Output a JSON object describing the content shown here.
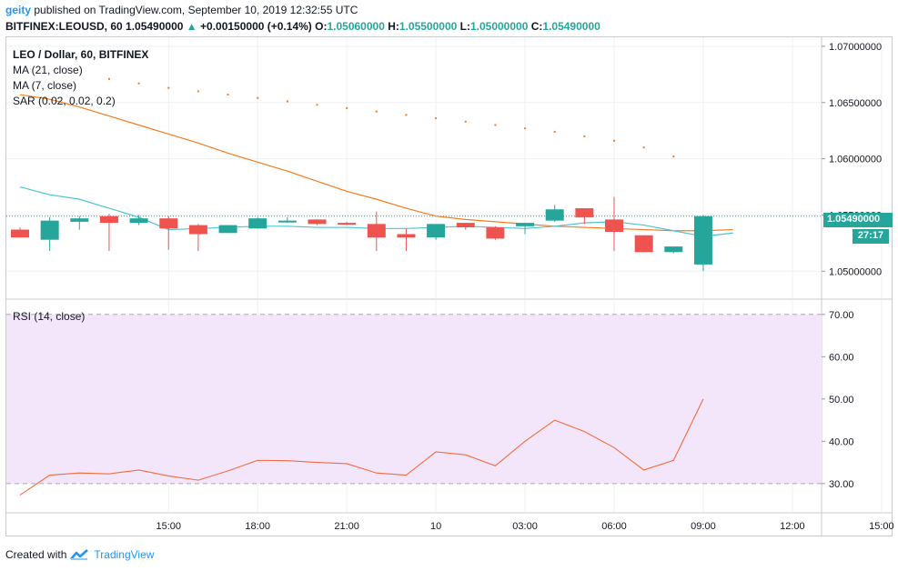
{
  "header": {
    "user": "geity",
    "published": "published on TradingView.com, September 10, 2019 12:32:55 UTC",
    "symbol": "BITFINEX:LEOUSD, 60",
    "last": "1.05490000",
    "change": "+0.00150000 (+0.14%)",
    "o_label": "O:",
    "o_value": "1.05060000",
    "h_label": "H:",
    "h_value": "1.05500000",
    "l_label": "L:",
    "l_value": "1.05000000",
    "c_label": "C:",
    "c_value": "1.05490000"
  },
  "legend": {
    "title": "LEO / Dollar, 60, BITFINEX",
    "ma21": "MA (21, close)",
    "ma7": "MA (7, close)",
    "sar": "SAR (0.02, 0.02, 0.2)",
    "rsi": "RSI (14, close)"
  },
  "price_labels": {
    "last": "1.05490000",
    "countdown": "27:17"
  },
  "footer": {
    "created": "Created with",
    "brand": "TradingView"
  },
  "colors": {
    "up": "#26a69a",
    "down": "#ef5350",
    "ma21": "#f57c1f",
    "ma7": "#4fc3d2",
    "sar": "#f57c1f",
    "rsi": "#f26c3d",
    "rsi_band": "#f3e6fb"
  },
  "chart_data": [
    {
      "type": "candlestick",
      "title": "LEO / Dollar, 60, BITFINEX",
      "y_ticks": [
        "1.05000000",
        "1.05500000",
        "1.06000000",
        "1.06500000",
        "1.07000000"
      ],
      "ylim": [
        1.0476,
        1.0708
      ],
      "x_ticks": [
        "15:00",
        "18:00",
        "21:00",
        "10",
        "03:00",
        "06:00",
        "09:00",
        "12:00",
        "15:00"
      ],
      "candles": [
        {
          "t": 1,
          "o": 1.0537,
          "h": 1.0539,
          "l": 1.053,
          "c": 1.053
        },
        {
          "t": 2,
          "o": 1.0528,
          "h": 1.0548,
          "l": 1.0518,
          "c": 1.0545
        },
        {
          "t": 3,
          "o": 1.0544,
          "h": 1.0549,
          "l": 1.0537,
          "c": 1.0547
        },
        {
          "t": 4,
          "o": 1.0549,
          "h": 1.0551,
          "l": 1.0518,
          "c": 1.0543
        },
        {
          "t": 5,
          "o": 1.0543,
          "h": 1.055,
          "l": 1.0541,
          "c": 1.0547
        },
        {
          "t": 6,
          "o": 1.0547,
          "h": 1.0549,
          "l": 1.0519,
          "c": 1.0538
        },
        {
          "t": 7,
          "o": 1.0541,
          "h": 1.0542,
          "l": 1.0518,
          "c": 1.0533
        },
        {
          "t": 8,
          "o": 1.0534,
          "h": 1.0541,
          "l": 1.0534,
          "c": 1.0541
        },
        {
          "t": 9,
          "o": 1.0538,
          "h": 1.0548,
          "l": 1.0538,
          "c": 1.0547
        },
        {
          "t": 10,
          "o": 1.0545,
          "h": 1.0548,
          "l": 1.0543,
          "c": 1.0545
        },
        {
          "t": 11,
          "o": 1.0546,
          "h": 1.0546,
          "l": 1.0541,
          "c": 1.0542
        },
        {
          "t": 12,
          "o": 1.0543,
          "h": 1.0544,
          "l": 1.0541,
          "c": 1.0542
        },
        {
          "t": 13,
          "o": 1.0542,
          "h": 1.0553,
          "l": 1.0518,
          "c": 1.053
        },
        {
          "t": 14,
          "o": 1.0533,
          "h": 1.0538,
          "l": 1.0518,
          "c": 1.053
        },
        {
          "t": 15,
          "o": 1.053,
          "h": 1.0542,
          "l": 1.0528,
          "c": 1.0542
        },
        {
          "t": 16,
          "o": 1.0543,
          "h": 1.0543,
          "l": 1.0537,
          "c": 1.0539
        },
        {
          "t": 17,
          "o": 1.0539,
          "h": 1.054,
          "l": 1.0528,
          "c": 1.0529
        },
        {
          "t": 18,
          "o": 1.054,
          "h": 1.0541,
          "l": 1.0533,
          "c": 1.0543
        },
        {
          "t": 19,
          "o": 1.0545,
          "h": 1.0559,
          "l": 1.0544,
          "c": 1.0555
        },
        {
          "t": 20,
          "o": 1.0556,
          "h": 1.0556,
          "l": 1.0542,
          "c": 1.0548
        },
        {
          "t": 21,
          "o": 1.0546,
          "h": 1.0566,
          "l": 1.0518,
          "c": 1.0535
        },
        {
          "t": 22,
          "o": 1.0532,
          "h": 1.0532,
          "l": 1.0517,
          "c": 1.0517
        },
        {
          "t": 23,
          "o": 1.0517,
          "h": 1.0522,
          "l": 1.0516,
          "c": 1.0522
        },
        {
          "t": 24,
          "o": 1.0506,
          "h": 1.055,
          "l": 1.05,
          "c": 1.0549
        }
      ],
      "ma21": [
        [
          0,
          1.0657
        ],
        [
          1,
          1.0653
        ],
        [
          2,
          1.0646
        ],
        [
          3,
          1.0638
        ],
        [
          4,
          1.063
        ],
        [
          5,
          1.0622
        ],
        [
          6,
          1.0614
        ],
        [
          7,
          1.0605
        ],
        [
          8,
          1.0597
        ],
        [
          9,
          1.0589
        ],
        [
          10,
          1.058
        ],
        [
          11,
          1.0571
        ],
        [
          12,
          1.0564
        ],
        [
          13,
          1.0556
        ],
        [
          14,
          1.0549
        ],
        [
          15,
          1.0546
        ],
        [
          16,
          1.0544
        ],
        [
          17,
          1.0542
        ],
        [
          18,
          1.054
        ],
        [
          19,
          1.0539
        ],
        [
          20,
          1.0538
        ],
        [
          21,
          1.0537
        ],
        [
          22,
          1.0536
        ],
        [
          23,
          1.0536
        ],
        [
          24,
          1.0537
        ]
      ],
      "ma7": [
        [
          0,
          1.0575
        ],
        [
          1,
          1.0568
        ],
        [
          2,
          1.0564
        ],
        [
          3,
          1.0556
        ],
        [
          4,
          1.0548
        ],
        [
          5,
          1.0537
        ],
        [
          6,
          1.0538
        ],
        [
          7,
          1.0539
        ],
        [
          8,
          1.054
        ],
        [
          9,
          1.054
        ],
        [
          10,
          1.0539
        ],
        [
          11,
          1.0539
        ],
        [
          12,
          1.0538
        ],
        [
          13,
          1.0538
        ],
        [
          14,
          1.0539
        ],
        [
          15,
          1.054
        ],
        [
          16,
          1.0539
        ],
        [
          17,
          1.0538
        ],
        [
          18,
          1.054
        ],
        [
          19,
          1.0543
        ],
        [
          20,
          1.0544
        ],
        [
          21,
          1.0541
        ],
        [
          22,
          1.0536
        ],
        [
          23,
          1.0531
        ],
        [
          24,
          1.0534
        ]
      ],
      "sar": [
        [
          3,
          1.0671
        ],
        [
          4,
          1.0667
        ],
        [
          5,
          1.0663
        ],
        [
          6,
          1.066
        ],
        [
          7,
          1.0657
        ],
        [
          8,
          1.0654
        ],
        [
          9,
          1.0651
        ],
        [
          10,
          1.0648
        ],
        [
          11,
          1.0645
        ],
        [
          12,
          1.0642
        ],
        [
          13,
          1.0639
        ],
        [
          14,
          1.0636
        ],
        [
          15,
          1.0633
        ],
        [
          16,
          1.063
        ],
        [
          17,
          1.0627
        ],
        [
          18,
          1.0624
        ],
        [
          19,
          1.062
        ],
        [
          20,
          1.0616
        ],
        [
          21,
          1.061
        ],
        [
          22,
          1.0602
        ]
      ],
      "last_price": 1.0549
    },
    {
      "type": "line",
      "title": "RSI (14, close)",
      "y_ticks": [
        "30.00",
        "40.00",
        "50.00",
        "60.00",
        "70.00"
      ],
      "ylim": [
        23.3,
        73.4
      ],
      "band": [
        30,
        70
      ],
      "values": [
        [
          0,
          27.3
        ],
        [
          1,
          32.0
        ],
        [
          2,
          32.5
        ],
        [
          3,
          32.3
        ],
        [
          4,
          33.2
        ],
        [
          5,
          31.8
        ],
        [
          6,
          30.8
        ],
        [
          7,
          33.0
        ],
        [
          8,
          35.5
        ],
        [
          9,
          35.4
        ],
        [
          10,
          35.0
        ],
        [
          11,
          34.7
        ],
        [
          12,
          32.5
        ],
        [
          13,
          32.0
        ],
        [
          14,
          37.5
        ],
        [
          15,
          36.8
        ],
        [
          16,
          34.2
        ],
        [
          17,
          40.0
        ],
        [
          18,
          45.0
        ],
        [
          19,
          42.3
        ],
        [
          20,
          38.5
        ],
        [
          21,
          33.2
        ],
        [
          22,
          35.5
        ],
        [
          23,
          50.0
        ]
      ]
    }
  ]
}
